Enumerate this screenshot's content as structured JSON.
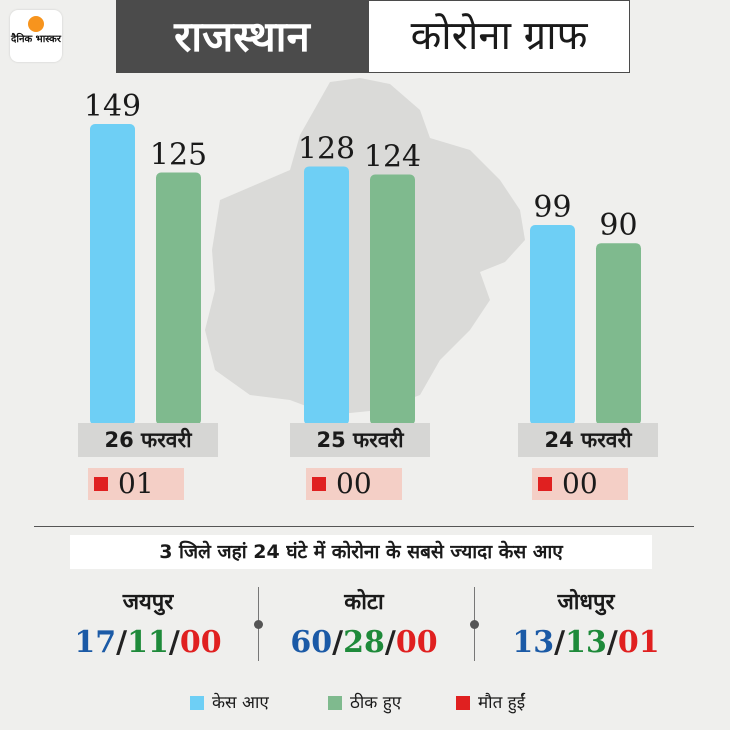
{
  "brand": {
    "logo_text": "दैनिक भास्कर",
    "logo_color": "#f7941d"
  },
  "header": {
    "state": "राजस्थान",
    "title": "कोरोना ग्राफ"
  },
  "colors": {
    "cases": "#6ecff5",
    "recovered": "#7fba8e",
    "deaths": "#e02020"
  },
  "chart_data": {
    "type": "bar",
    "categories": [
      "26 फरवरी",
      "25 फरवरी",
      "24 फरवरी"
    ],
    "series": [
      {
        "name": "केस आए",
        "values": [
          149,
          128,
          99
        ]
      },
      {
        "name": "ठीक हुए",
        "values": [
          125,
          124,
          90
        ]
      },
      {
        "name": "मौत हुईं",
        "values": [
          "01",
          "00",
          "00"
        ]
      }
    ],
    "value_labels": {
      "cases": [
        "149",
        "128",
        "99"
      ],
      "recovered": [
        "125",
        "124",
        "90"
      ]
    },
    "deaths_labels": [
      "01",
      "00",
      "00"
    ],
    "ylim": [
      0,
      160
    ],
    "legend_position": "bottom"
  },
  "districts": {
    "subtitle": "3 जिले जहां 24 घंटे में कोरोना के सबसे ज्यादा केस आए",
    "items": [
      {
        "name": "जयपुर",
        "cases": "17",
        "recovered": "11",
        "deaths": "00"
      },
      {
        "name": "कोटा",
        "cases": "60",
        "recovered": "28",
        "deaths": "00"
      },
      {
        "name": "जोधपुर",
        "cases": "13",
        "recovered": "13",
        "deaths": "01"
      }
    ]
  },
  "legend": {
    "cases": "केस आए",
    "recovered": "ठीक हुए",
    "deaths": "मौत हुईं"
  }
}
